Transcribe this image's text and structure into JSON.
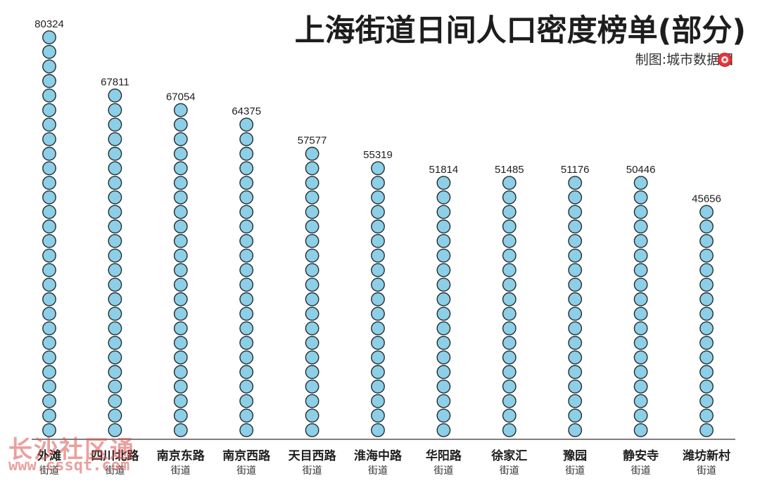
{
  "chart_data": {
    "type": "bar",
    "title": "上海街道日间人口密度榜单(部分)",
    "subtitle": "制图:城市数据团",
    "categories": [
      "外滩",
      "四川北路",
      "南京东路",
      "南京西路",
      "天目西路",
      "淮海中路",
      "华阳路",
      "徐家汇",
      "豫园",
      "静安寺",
      "潍坊新村"
    ],
    "category_suffix": "街道",
    "values": [
      80324,
      67811,
      67054,
      64375,
      57577,
      55319,
      51814,
      51485,
      51176,
      50446,
      45656
    ],
    "series": [
      {
        "values": [
          80324,
          67811,
          67054,
          64375,
          57577,
          55319,
          51814,
          51485,
          51176,
          50446,
          45656
        ]
      }
    ],
    "xlabel": "",
    "ylabel": "",
    "grid": false,
    "legend": "none",
    "style": {
      "mark": "stacked-circles",
      "fill": "#8ccfe7",
      "stroke": "#252b2f",
      "baseline_color": "#555555"
    }
  },
  "watermark": {
    "text": "长沙社区通",
    "url": "www.cssqt.com"
  }
}
